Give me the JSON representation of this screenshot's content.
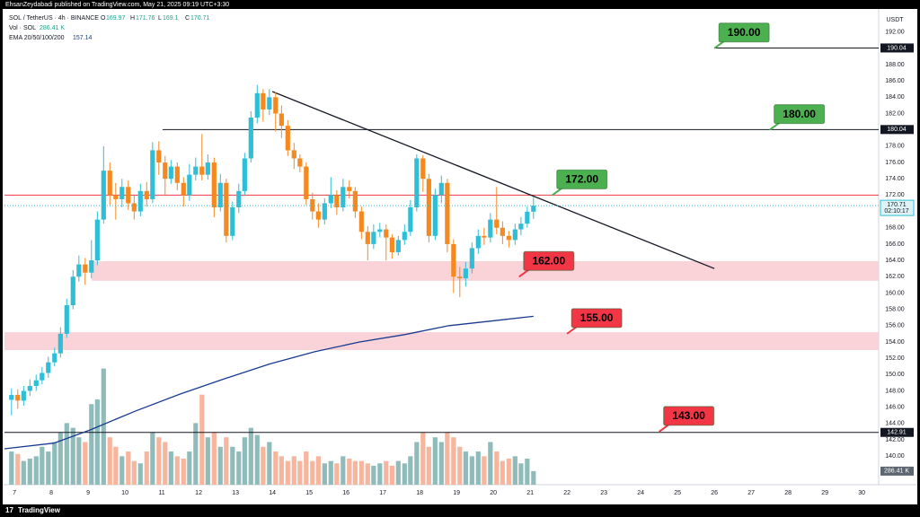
{
  "header": {
    "published": "EhsanZeydabadi published on TradingView.com, May 21, 2025 09:19 UTC+3:30"
  },
  "footer": {
    "brand": "TradingView"
  },
  "chart_data": {
    "type": "candlestick",
    "title": "SOL / TetherUS · 4h · BINANCE",
    "ohlc_labels": [
      "O",
      "H",
      "L",
      "C"
    ],
    "currency": "USDT",
    "up_color": "#2ebfd6",
    "down_color": "#f5891f",
    "x": [
      6.92,
      7.09,
      7.25,
      7.42,
      7.59,
      7.75,
      7.92,
      8.09,
      8.25,
      8.42,
      8.59,
      8.75,
      8.92,
      9.09,
      9.25,
      9.42,
      9.59,
      9.75,
      9.92,
      10.09,
      10.25,
      10.42,
      10.59,
      10.75,
      10.92,
      11.09,
      11.25,
      11.42,
      11.59,
      11.75,
      11.92,
      12.09,
      12.25,
      12.42,
      12.59,
      12.75,
      12.92,
      13.09,
      13.25,
      13.42,
      13.59,
      13.75,
      13.92,
      14.09,
      14.25,
      14.42,
      14.59,
      14.75,
      14.92,
      15.09,
      15.25,
      15.42,
      15.59,
      15.75,
      15.92,
      16.09,
      16.25,
      16.42,
      16.59,
      16.75,
      16.92,
      17.09,
      17.25,
      17.42,
      17.59,
      17.75,
      17.92,
      18.09,
      18.25,
      18.42,
      18.59,
      18.75,
      18.92,
      19.09,
      19.25,
      19.42,
      19.59,
      19.75,
      19.92,
      20.09,
      20.25,
      20.42,
      20.59,
      20.75,
      20.92,
      21.09
    ],
    "open": [
      146.9,
      147.5,
      146.8,
      148.0,
      148.6,
      149.3,
      150.2,
      151.5,
      152.6,
      155.0,
      158.5,
      162.0,
      163.5,
      162.5,
      164.0,
      169.0,
      175.0,
      172.0,
      171.5,
      173.0,
      171.0,
      170.0,
      172.5,
      171.5,
      177.5,
      176.0,
      174.0,
      175.5,
      173.5,
      172.0,
      174.5,
      175.5,
      174.5,
      176.0,
      170.5,
      173.5,
      167.0,
      170.5,
      172.5,
      176.5,
      181.5,
      184.5,
      182.5,
      184.0,
      182.0,
      180.5,
      177.5,
      176.5,
      175.5,
      171.5,
      170.0,
      169.0,
      171.0,
      172.0,
      170.5,
      173.0,
      172.5,
      170.0,
      167.5,
      166.0,
      167.5,
      167.8,
      166.8,
      165.0,
      166.5,
      167.5,
      170.5,
      176.5,
      174.0,
      167.0,
      172.0,
      173.5,
      166.0,
      162.0,
      161.8,
      163.0,
      165.5,
      167.0,
      166.8,
      169.0,
      168.0,
      167.0,
      166.5,
      167.8,
      168.5,
      169.97
    ],
    "high": [
      148.3,
      148.2,
      148.6,
      149.4,
      150.0,
      150.9,
      152.2,
      153.3,
      155.8,
      159.3,
      162.8,
      164.6,
      164.3,
      166.5,
      170.0,
      178.0,
      176.0,
      173.5,
      174.0,
      173.8,
      172.0,
      173.4,
      173.6,
      178.5,
      178.6,
      176.8,
      176.3,
      176.0,
      174.2,
      175.8,
      176.6,
      179.5,
      177.0,
      176.6,
      174.6,
      174.0,
      171.2,
      173.4,
      177.2,
      182.3,
      185.5,
      185.0,
      185.0,
      184.6,
      183.0,
      181.2,
      178.4,
      177.0,
      176.0,
      172.3,
      171.0,
      171.6,
      174.2,
      172.6,
      174.0,
      173.8,
      173.0,
      170.6,
      168.2,
      168.4,
      168.6,
      168.4,
      167.2,
      167.0,
      168.4,
      171.4,
      177.0,
      176.9,
      174.6,
      172.8,
      174.4,
      174.0,
      166.6,
      163.2,
      163.8,
      166.2,
      167.8,
      168.0,
      169.8,
      173.0,
      168.8,
      167.6,
      168.5,
      169.3,
      170.6,
      171.76
    ],
    "low": [
      145.0,
      145.8,
      146.2,
      147.4,
      148.0,
      148.8,
      149.6,
      151.0,
      152.1,
      154.5,
      158.0,
      161.4,
      161.0,
      161.8,
      163.4,
      168.5,
      170.8,
      169.0,
      170.5,
      170.2,
      169.0,
      169.4,
      170.6,
      171.0,
      174.5,
      172.0,
      173.4,
      172.6,
      170.6,
      171.3,
      173.8,
      173.8,
      173.9,
      169.3,
      170.0,
      166.2,
      166.5,
      169.8,
      172.0,
      176.0,
      180.8,
      181.0,
      181.8,
      179.8,
      179.0,
      176.8,
      175.2,
      174.8,
      170.8,
      169.0,
      168.0,
      168.4,
      170.4,
      169.6,
      170.0,
      171.6,
      169.2,
      166.6,
      164.0,
      165.4,
      166.8,
      164.0,
      164.2,
      164.6,
      165.9,
      167.0,
      170.0,
      172.4,
      166.2,
      166.5,
      171.0,
      165.0,
      160.0,
      159.5,
      160.8,
      162.4,
      164.8,
      165.9,
      166.2,
      167.2,
      166.0,
      165.6,
      165.9,
      167.1,
      168.0,
      169.1
    ],
    "close": [
      147.5,
      146.8,
      148.0,
      148.6,
      149.3,
      150.2,
      151.5,
      152.6,
      155.0,
      158.5,
      162.0,
      163.5,
      162.5,
      164.0,
      169.0,
      175.0,
      172.0,
      171.5,
      173.0,
      171.0,
      170.0,
      172.5,
      171.5,
      177.5,
      176.0,
      174.0,
      175.5,
      173.5,
      172.0,
      174.5,
      175.5,
      174.5,
      176.0,
      170.5,
      173.5,
      167.0,
      170.5,
      172.5,
      176.5,
      181.5,
      184.5,
      182.5,
      184.0,
      182.0,
      180.5,
      177.5,
      176.5,
      175.5,
      171.5,
      170.0,
      169.0,
      171.0,
      172.0,
      170.5,
      173.0,
      172.5,
      170.0,
      167.5,
      166.0,
      167.5,
      167.8,
      166.8,
      165.0,
      166.5,
      167.5,
      170.5,
      176.5,
      174.0,
      167.0,
      172.0,
      173.5,
      166.0,
      162.0,
      161.8,
      163.0,
      165.5,
      167.0,
      166.8,
      169.0,
      168.0,
      167.0,
      166.5,
      167.8,
      168.5,
      169.97,
      170.71
    ],
    "volume": {
      "name": "Vol · SOL",
      "up_color": "#8fbcbb",
      "down_color": "#f6b59c",
      "lim": [
        0,
        10000
      ],
      "values": [
        700,
        650,
        500,
        550,
        600,
        800,
        700,
        900,
        1100,
        1300,
        1200,
        1000,
        900,
        1700,
        1800,
        2450,
        1000,
        800,
        600,
        700,
        500,
        450,
        700,
        1100,
        1000,
        900,
        700,
        600,
        550,
        700,
        1300,
        1900,
        1000,
        1100,
        800,
        1000,
        800,
        700,
        1000,
        1200,
        1050,
        800,
        900,
        700,
        600,
        500,
        600,
        500,
        700,
        500,
        600,
        450,
        500,
        450,
        600,
        550,
        500,
        500,
        450,
        400,
        450,
        500,
        400,
        500,
        450,
        600,
        900,
        1100,
        800,
        1000,
        900,
        1100,
        1000,
        800,
        700,
        600,
        700,
        600,
        900,
        700,
        500,
        550,
        600,
        450,
        550,
        286.41
      ],
      "value_labels": [
        null,
        null,
        null,
        null,
        null,
        null,
        null,
        null,
        null,
        null,
        null,
        null,
        null,
        null,
        null,
        null,
        null,
        null,
        null,
        null,
        null,
        null,
        null,
        null,
        null,
        null,
        null,
        null,
        null,
        null,
        null,
        null,
        null,
        null,
        null,
        null,
        null,
        null,
        null,
        null,
        null,
        null,
        null,
        null,
        null,
        null,
        null,
        null,
        null,
        null,
        null,
        null,
        null,
        null,
        null,
        null,
        null,
        null,
        null,
        null,
        null,
        null,
        null,
        null,
        null,
        null,
        null,
        null,
        null,
        null,
        null,
        null,
        null,
        null,
        null,
        null,
        null,
        null,
        null,
        null,
        null,
        null,
        null,
        null,
        null,
        "286.41 K"
      ]
    },
    "ema": {
      "name": "EMA 20/50/100/200",
      "color": "#1a3a8f",
      "x": [
        6.73,
        8.07,
        9.05,
        10.27,
        11.49,
        12.71,
        13.93,
        15.15,
        16.37,
        17.59,
        18.8,
        20.02,
        21.09
      ],
      "values": [
        140.9,
        141.6,
        143.2,
        145.5,
        147.6,
        149.5,
        151.3,
        152.8,
        154.0,
        154.9,
        156.0,
        156.6,
        157.14
      ]
    },
    "xlim": [
      6.73,
      30.46
    ],
    "xticks": [
      7,
      8,
      9,
      10,
      11,
      12,
      13,
      14,
      15,
      16,
      17,
      18,
      19,
      20,
      21,
      22,
      23,
      24,
      25,
      26,
      27,
      28,
      29,
      30
    ],
    "ylim": [
      136.5,
      194.6
    ],
    "yticks": [
      {
        "value": 192,
        "label": "192.00"
      },
      {
        "value": 190,
        "label": "190.00"
      },
      {
        "value": 188,
        "label": "188.00"
      },
      {
        "value": 186,
        "label": "186.00"
      },
      {
        "value": 184,
        "label": "184.00"
      },
      {
        "value": 182,
        "label": "182.00"
      },
      {
        "value": 180,
        "label": "180.00"
      },
      {
        "value": 178,
        "label": "178.00"
      },
      {
        "value": 176,
        "label": "176.00"
      },
      {
        "value": 174,
        "label": "174.00"
      },
      {
        "value": 172,
        "label": "172.00"
      },
      {
        "value": 170,
        "label": "170.00"
      },
      {
        "value": 168,
        "label": "168.00"
      },
      {
        "value": 166,
        "label": "166.00"
      },
      {
        "value": 164,
        "label": "164.00"
      },
      {
        "value": 162,
        "label": "162.00"
      },
      {
        "value": 160,
        "label": "160.00"
      },
      {
        "value": 158,
        "label": "158.00"
      },
      {
        "value": 156,
        "label": "156.00"
      },
      {
        "value": 154,
        "label": "154.00"
      },
      {
        "value": 152,
        "label": "152.00"
      },
      {
        "value": 150,
        "label": "150.00"
      },
      {
        "value": 148,
        "label": "148.00"
      },
      {
        "value": 146,
        "label": "146.00"
      },
      {
        "value": 144,
        "label": "144.00"
      },
      {
        "value": 142,
        "label": "142.00"
      },
      {
        "value": 140,
        "label": "140.00"
      }
    ],
    "zones": [
      {
        "from": 161.5,
        "to": 163.9,
        "x": 9.1,
        "color": "#f9d3d8"
      },
      {
        "from": 153.0,
        "to": 155.2,
        "x": 6.73,
        "color": "#f9d3d8"
      }
    ],
    "levels": [
      {
        "value": 190.04,
        "x": 26.0,
        "color": "#131722",
        "boxed": true
      },
      {
        "value": 180.04,
        "x": 11.02,
        "color": "#131722",
        "boxed": true
      },
      {
        "value": 172.0,
        "x": 6.73,
        "color": "#f23645",
        "boxed": false
      },
      {
        "value": 142.91,
        "x": 6.73,
        "color": "#131722",
        "boxed": true
      }
    ],
    "trendline": {
      "x": [
        14.0,
        26.0
      ],
      "values": [
        184.7,
        163.0
      ],
      "color": "#131722"
    },
    "callouts": [
      {
        "value": 190,
        "label": "190.00",
        "x": 26.0,
        "color": "#4caf50"
      },
      {
        "value": 180,
        "label": "180.00",
        "x": 27.5,
        "color": "#4caf50"
      },
      {
        "value": 172,
        "label": "172.00",
        "x": 21.6,
        "color": "#4caf50"
      },
      {
        "value": 162,
        "label": "162.00",
        "x": 20.7,
        "color": "#f23645"
      },
      {
        "value": 155,
        "label": "155.00",
        "x": 22.0,
        "color": "#f23645"
      },
      {
        "value": 143,
        "label": "143.00",
        "x": 24.5,
        "color": "#f23645"
      }
    ],
    "countdown": "02:10:17"
  }
}
